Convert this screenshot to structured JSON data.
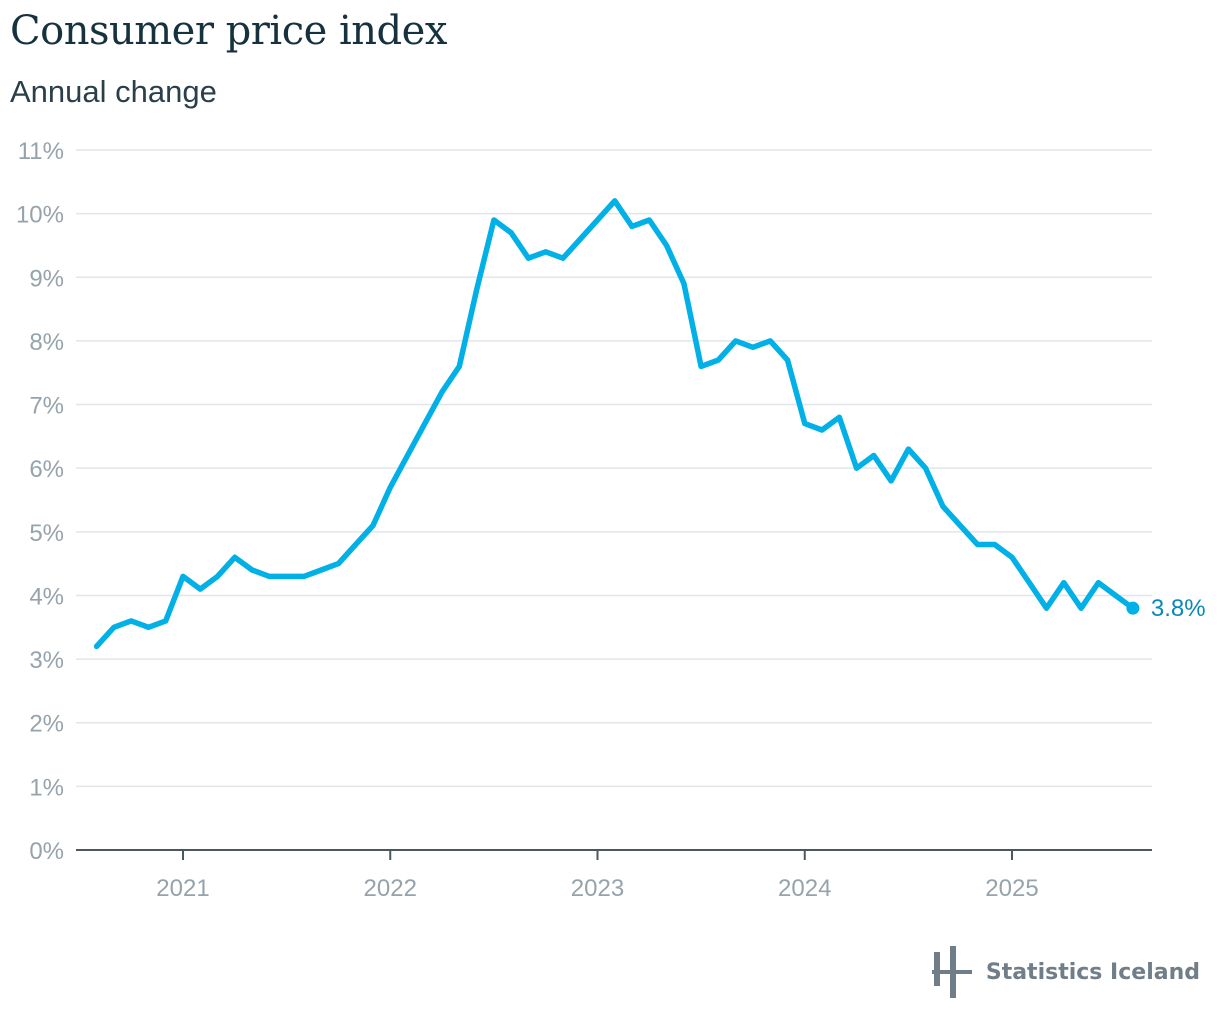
{
  "header": {
    "title": "Consumer price index",
    "subtitle": "Annual change"
  },
  "brand": {
    "name": "Statistics Iceland",
    "logo_icon": "statistics-iceland-logo-icon"
  },
  "colors": {
    "line": "#00b0e6",
    "label": "#0a88b8",
    "grid": "#e2e6e9",
    "axis": "#4a5860",
    "tick_text": "#96a3ab"
  },
  "chart_data": {
    "type": "line",
    "title": "Consumer price index",
    "subtitle": "Annual change",
    "xlabel": "",
    "ylabel": "",
    "ylim": [
      0,
      11
    ],
    "yticks": [
      0,
      1,
      2,
      3,
      4,
      5,
      6,
      7,
      8,
      9,
      10,
      11
    ],
    "ytick_labels": [
      "0%",
      "1%",
      "2%",
      "3%",
      "4%",
      "5%",
      "6%",
      "7%",
      "8%",
      "9%",
      "10%",
      "11%"
    ],
    "xticks": [
      "2021",
      "2022",
      "2023",
      "2024",
      "2025"
    ],
    "grid": true,
    "legend": "none",
    "end_label": "3.8%",
    "series": [
      {
        "x": [
          "2020-08",
          "2020-09",
          "2020-10",
          "2020-11",
          "2020-12",
          "2021-01",
          "2021-02",
          "2021-03",
          "2021-04",
          "2021-05",
          "2021-06",
          "2021-07",
          "2021-08",
          "2021-09",
          "2021-10",
          "2021-11",
          "2021-12",
          "2022-01",
          "2022-02",
          "2022-03",
          "2022-04",
          "2022-05",
          "2022-06",
          "2022-07",
          "2022-08",
          "2022-09",
          "2022-10",
          "2022-11",
          "2022-12",
          "2023-01",
          "2023-02",
          "2023-03",
          "2023-04",
          "2023-05",
          "2023-06",
          "2023-07",
          "2023-08",
          "2023-09",
          "2023-10",
          "2023-11",
          "2023-12",
          "2024-01",
          "2024-02",
          "2024-03",
          "2024-04",
          "2024-05",
          "2024-06",
          "2024-07",
          "2024-08",
          "2024-09",
          "2024-10",
          "2024-11",
          "2024-12",
          "2025-01",
          "2025-02",
          "2025-03",
          "2025-04",
          "2025-05",
          "2025-06",
          "2025-07",
          "2025-08"
        ],
        "values": [
          3.2,
          3.5,
          3.6,
          3.5,
          3.6,
          4.3,
          4.1,
          4.3,
          4.6,
          4.4,
          4.3,
          4.3,
          4.3,
          4.4,
          4.5,
          4.8,
          5.1,
          5.7,
          6.2,
          6.7,
          7.2,
          7.6,
          8.8,
          9.9,
          9.7,
          9.3,
          9.4,
          9.3,
          9.6,
          9.9,
          10.2,
          9.8,
          9.9,
          9.5,
          8.9,
          7.6,
          7.7,
          8.0,
          7.9,
          8.0,
          7.7,
          6.7,
          6.6,
          6.8,
          6.0,
          6.2,
          5.8,
          6.3,
          6.0,
          5.4,
          5.1,
          4.8,
          4.8,
          4.6,
          4.2,
          3.8,
          4.2,
          3.8,
          4.2,
          4.0,
          3.8
        ]
      }
    ]
  }
}
